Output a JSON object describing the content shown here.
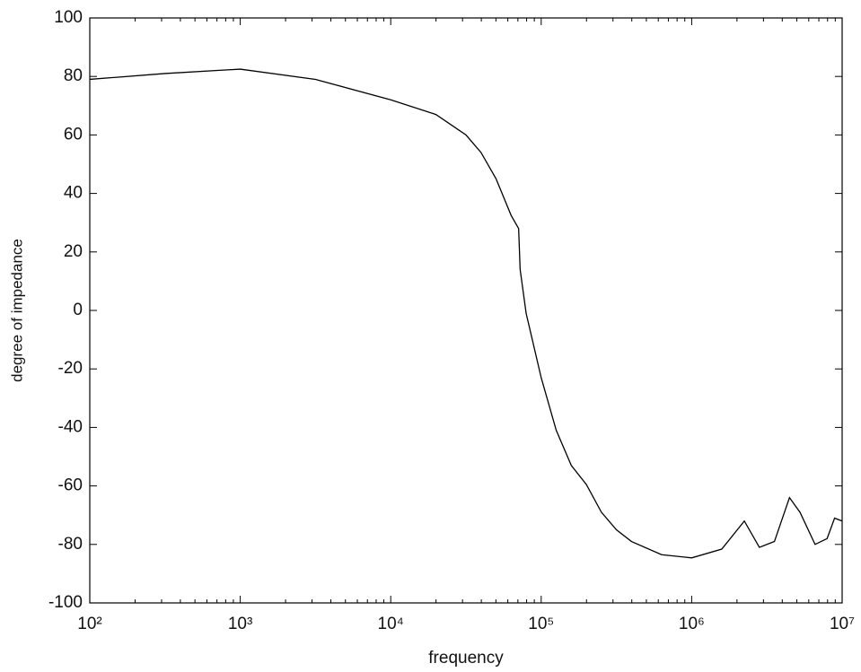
{
  "chart_data": {
    "type": "line",
    "xscale": "log",
    "x_label": "frequency",
    "y_label": "degree of impedance",
    "x": [
      100,
      316,
      1000,
      3162,
      10000,
      19953,
      31623,
      39811,
      50119,
      63096,
      70795,
      72444,
      79433,
      100000,
      125893,
      158489,
      199526,
      251189,
      316228,
      398107,
      630957,
      1000000,
      1584893,
      2238721,
      2818383,
      3548134,
      4466836,
      5248075,
      6606934,
      7943282,
      8912509,
      10000000
    ],
    "series": [
      {
        "color": "#000000",
        "values": [
          79,
          81,
          82.5,
          79,
          72,
          67,
          60,
          54,
          45,
          32.5,
          28,
          14,
          -1,
          -23,
          -41,
          -53,
          -59.5,
          -69,
          -75,
          -79,
          -83.5,
          -84.6,
          -81.6,
          -72,
          -81,
          -79,
          -64,
          -69,
          -80,
          -78,
          -71,
          -72
        ]
      }
    ],
    "xlim": [
      100,
      10000000
    ],
    "xticks": [
      {
        "value": 100,
        "label": "10²"
      },
      {
        "value": 1000,
        "label": "10³"
      },
      {
        "value": 10000,
        "label": "10⁴"
      },
      {
        "value": 100000,
        "label": "10⁵"
      },
      {
        "value": 1000000,
        "label": "10⁶"
      },
      {
        "value": 10000000,
        "label": "10⁷"
      }
    ],
    "ylim": [
      -100,
      100
    ],
    "yticks": [
      -100,
      -80,
      -60,
      -40,
      -20,
      0,
      20,
      40,
      60,
      80,
      100
    ],
    "grid": false
  }
}
